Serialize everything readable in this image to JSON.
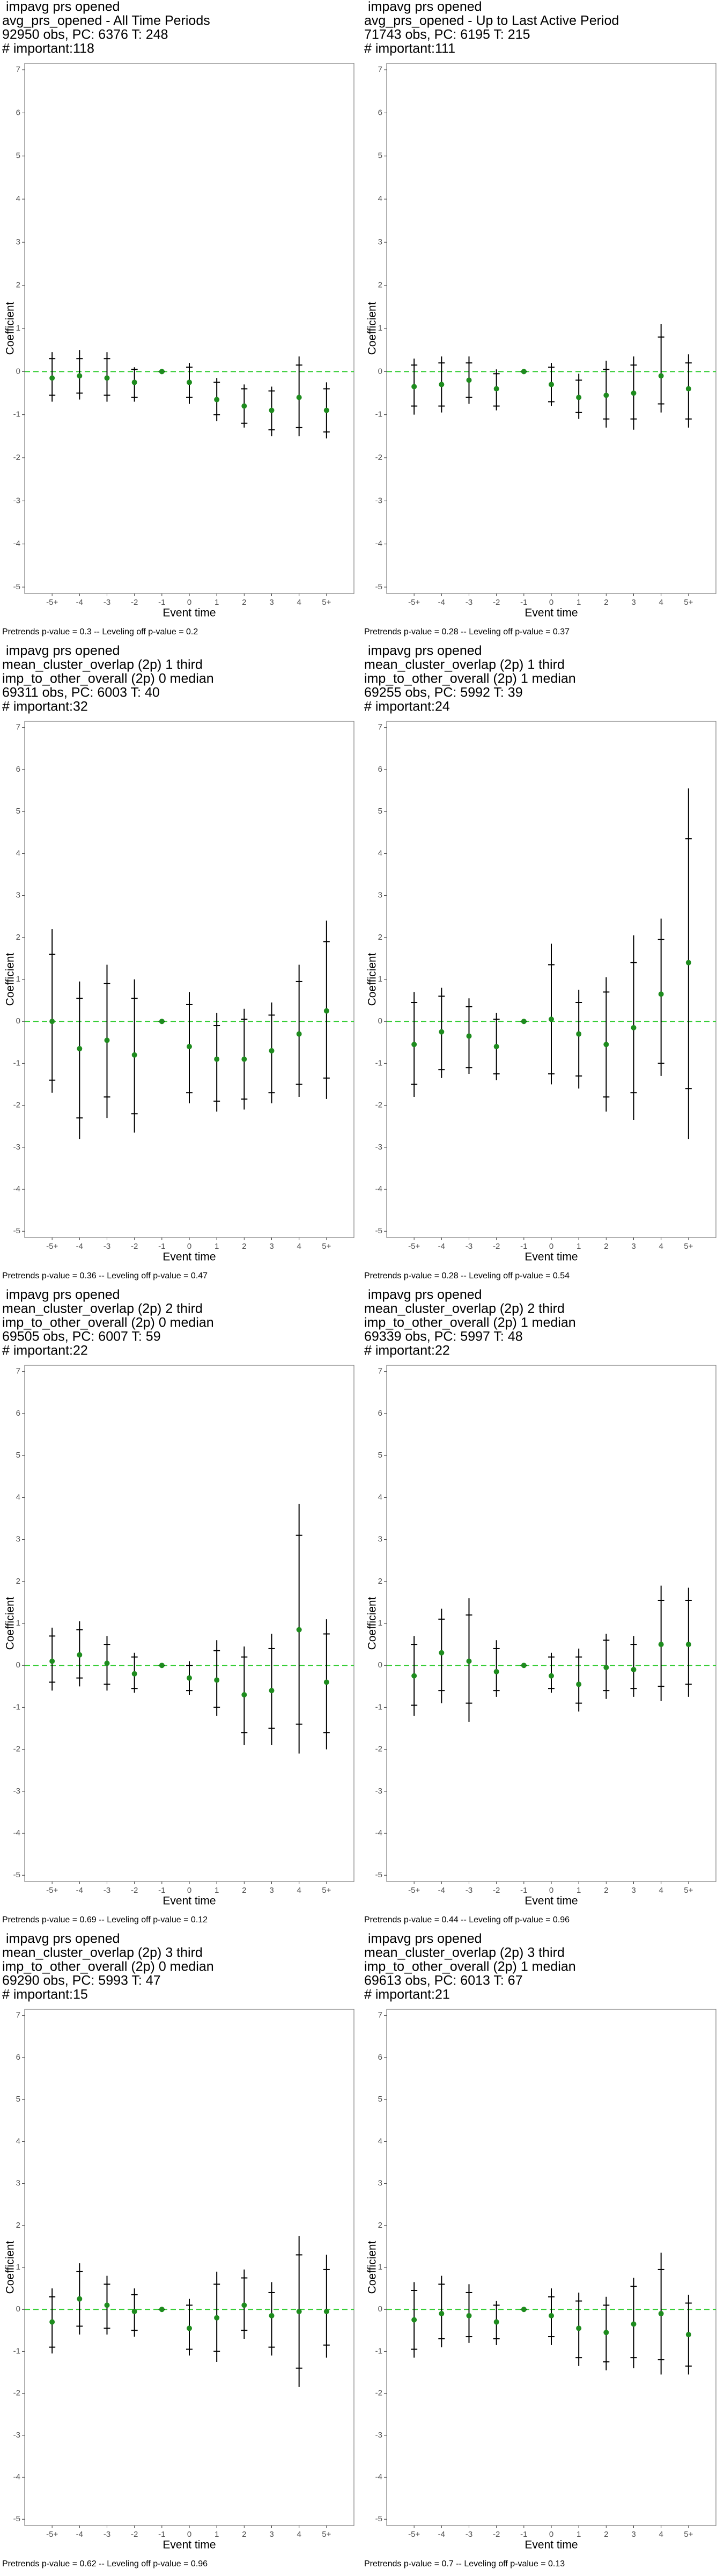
{
  "chart_data": [
    {
      "type": "point-range",
      "title": [
        " impavg prs opened",
        "avg_prs_opened - All Time Periods",
        "92950 obs, PC: 6376 T: 248",
        "# important:118"
      ],
      "xlabel": "Event time",
      "ylabel": "Coefficient",
      "footnote": "Pretrends p-value = 0.3 -- Leveling off p-value = 0.2",
      "categories": [
        "-5+",
        "-4",
        "-3",
        "-2",
        "-1",
        "0",
        "1",
        "2",
        "3",
        "4",
        "5+"
      ],
      "values": [
        -0.15,
        -0.1,
        -0.15,
        -0.25,
        0,
        -0.25,
        -0.65,
        -0.8,
        -0.9,
        -0.6,
        -0.9
      ],
      "ci_lower": [
        -0.7,
        -0.65,
        -0.7,
        -0.7,
        0,
        -0.75,
        -1.15,
        -1.3,
        -1.5,
        -1.5,
        -1.55
      ],
      "ci_upper": [
        0.45,
        0.5,
        0.45,
        0.1,
        0,
        0.2,
        -0.15,
        -0.3,
        -0.35,
        0.35,
        -0.25
      ],
      "inner_lower": [
        -0.55,
        -0.5,
        -0.55,
        -0.6,
        0,
        -0.6,
        -1.0,
        -1.2,
        -1.35,
        -1.3,
        -1.4
      ],
      "inner_upper": [
        0.3,
        0.3,
        0.3,
        0.05,
        0,
        0.1,
        -0.25,
        -0.4,
        -0.45,
        0.15,
        -0.4
      ],
      "ylim": [
        -5.15,
        7.15
      ],
      "yticks": [
        -5,
        -4,
        -3,
        -2,
        -1,
        0,
        1,
        2,
        3,
        4,
        5,
        6,
        7
      ],
      "hline": 0,
      "hline_color": "#33cc33",
      "point_color": "#1e8c1e",
      "line_color": "#000000"
    },
    {
      "type": "point-range",
      "title": [
        " impavg prs opened",
        "avg_prs_opened - Up to Last Active Period",
        "71743 obs, PC: 6195 T: 215",
        "# important:111"
      ],
      "xlabel": "Event time",
      "ylabel": "Coefficient",
      "footnote": "Pretrends p-value = 0.28 -- Leveling off p-value = 0.37",
      "categories": [
        "-5+",
        "-4",
        "-3",
        "-2",
        "-1",
        "0",
        "1",
        "2",
        "3",
        "4",
        "5+"
      ],
      "values": [
        -0.35,
        -0.3,
        -0.2,
        -0.4,
        0,
        -0.3,
        -0.6,
        -0.55,
        -0.5,
        -0.1,
        -0.4
      ],
      "ci_lower": [
        -1.0,
        -0.95,
        -0.75,
        -0.9,
        0,
        -0.8,
        -1.1,
        -1.3,
        -1.35,
        -0.95,
        -1.3
      ],
      "ci_upper": [
        0.3,
        0.35,
        0.35,
        0.05,
        0,
        0.2,
        -0.05,
        0.25,
        0.35,
        1.1,
        0.4
      ],
      "inner_lower": [
        -0.8,
        -0.8,
        -0.6,
        -0.8,
        0,
        -0.7,
        -0.95,
        -1.1,
        -1.1,
        -0.75,
        -1.1
      ],
      "inner_upper": [
        0.15,
        0.2,
        0.2,
        -0.05,
        0,
        0.1,
        -0.2,
        0.05,
        0.15,
        0.8,
        0.2
      ],
      "ylim": [
        -5.15,
        7.15
      ],
      "yticks": [
        -5,
        -4,
        -3,
        -2,
        -1,
        0,
        1,
        2,
        3,
        4,
        5,
        6,
        7
      ],
      "hline": 0,
      "hline_color": "#33cc33",
      "point_color": "#1e8c1e",
      "line_color": "#000000"
    },
    {
      "type": "point-range",
      "title": [
        " impavg prs opened",
        "mean_cluster_overlap (2p) 1 third",
        "imp_to_other_overall (2p) 0 median",
        "69311 obs, PC: 6003 T: 40",
        "# important:32"
      ],
      "xlabel": "Event time",
      "ylabel": "Coefficient",
      "footnote": "Pretrends p-value = 0.36 -- Leveling off p-value = 0.47",
      "categories": [
        "-5+",
        "-4",
        "-3",
        "-2",
        "-1",
        "0",
        "1",
        "2",
        "3",
        "4",
        "5+"
      ],
      "values": [
        0,
        -0.65,
        -0.45,
        -0.8,
        0,
        -0.6,
        -0.9,
        -0.9,
        -0.7,
        -0.3,
        0.25
      ],
      "ci_lower": [
        -1.7,
        -2.8,
        -2.3,
        -2.65,
        0,
        -1.95,
        -2.15,
        -2.1,
        -1.95,
        -1.8,
        -1.85
      ],
      "ci_upper": [
        2.2,
        0.95,
        1.35,
        1.0,
        0,
        0.7,
        0.2,
        0.3,
        0.45,
        1.35,
        2.4
      ],
      "inner_lower": [
        -1.4,
        -2.3,
        -1.8,
        -2.2,
        0,
        -1.7,
        -1.9,
        -1.85,
        -1.7,
        -1.5,
        -1.35
      ],
      "inner_upper": [
        1.6,
        0.55,
        0.9,
        0.55,
        0,
        0.4,
        -0.1,
        0.05,
        0.15,
        0.95,
        1.9
      ],
      "ylim": [
        -5.15,
        7.15
      ],
      "yticks": [
        -5,
        -4,
        -3,
        -2,
        -1,
        0,
        1,
        2,
        3,
        4,
        5,
        6,
        7
      ],
      "hline": 0,
      "hline_color": "#33cc33",
      "point_color": "#1e8c1e",
      "line_color": "#000000"
    },
    {
      "type": "point-range",
      "title": [
        " impavg prs opened",
        "mean_cluster_overlap (2p) 1 third",
        "imp_to_other_overall (2p) 1 median",
        "69255 obs, PC: 5992 T: 39",
        "# important:24"
      ],
      "xlabel": "Event time",
      "ylabel": "Coefficient",
      "footnote": "Pretrends p-value = 0.28 -- Leveling off p-value = 0.54",
      "categories": [
        "-5+",
        "-4",
        "-3",
        "-2",
        "-1",
        "0",
        "1",
        "2",
        "3",
        "4",
        "5+"
      ],
      "values": [
        -0.55,
        -0.25,
        -0.35,
        -0.6,
        0,
        0.05,
        -0.3,
        -0.55,
        -0.15,
        0.65,
        1.4
      ],
      "ci_lower": [
        -1.8,
        -1.35,
        -1.25,
        -1.4,
        0,
        -1.5,
        -1.6,
        -2.15,
        -2.35,
        -1.3,
        -2.8
      ],
      "ci_upper": [
        0.7,
        0.8,
        0.55,
        0.2,
        0,
        1.85,
        0.75,
        1.05,
        2.05,
        2.45,
        5.55
      ],
      "inner_lower": [
        -1.5,
        -1.15,
        -1.1,
        -1.25,
        0,
        -1.25,
        -1.3,
        -1.8,
        -1.7,
        -1.0,
        -1.6
      ],
      "inner_upper": [
        0.45,
        0.6,
        0.35,
        0.05,
        0,
        1.35,
        0.45,
        0.7,
        1.4,
        1.95,
        4.35
      ],
      "ylim": [
        -5.15,
        7.15
      ],
      "yticks": [
        -5,
        -4,
        -3,
        -2,
        -1,
        0,
        1,
        2,
        3,
        4,
        5,
        6,
        7
      ],
      "hline": 0,
      "hline_color": "#33cc33",
      "point_color": "#1e8c1e",
      "line_color": "#000000"
    },
    {
      "type": "point-range",
      "title": [
        " impavg prs opened",
        "mean_cluster_overlap (2p) 2 third",
        "imp_to_other_overall (2p) 0 median",
        "69505 obs, PC: 6007 T: 59",
        "# important:22"
      ],
      "xlabel": "Event time",
      "ylabel": "Coefficient",
      "footnote": "Pretrends p-value = 0.69 -- Leveling off p-value = 0.12",
      "categories": [
        "-5+",
        "-4",
        "-3",
        "-2",
        "-1",
        "0",
        "1",
        "2",
        "3",
        "4",
        "5+"
      ],
      "values": [
        0.1,
        0.25,
        0.05,
        -0.2,
        0,
        -0.3,
        -0.35,
        -0.7,
        -0.6,
        0.85,
        -0.4
      ],
      "ci_lower": [
        -0.6,
        -0.5,
        -0.6,
        -0.65,
        0,
        -0.7,
        -1.2,
        -1.9,
        -1.9,
        -2.1,
        -2.0
      ],
      "ci_upper": [
        0.9,
        1.05,
        0.7,
        0.3,
        0,
        0.1,
        0.6,
        0.45,
        0.75,
        3.85,
        1.1
      ],
      "inner_lower": [
        -0.4,
        -0.3,
        -0.45,
        -0.55,
        0,
        -0.6,
        -1.0,
        -1.6,
        -1.5,
        -1.4,
        -1.6
      ],
      "inner_upper": [
        0.7,
        0.85,
        0.5,
        0.2,
        0,
        0.0,
        0.35,
        0.2,
        0.4,
        3.1,
        0.75
      ],
      "ylim": [
        -5.15,
        7.15
      ],
      "yticks": [
        -5,
        -4,
        -3,
        -2,
        -1,
        0,
        1,
        2,
        3,
        4,
        5,
        6,
        7
      ],
      "hline": 0,
      "hline_color": "#33cc33",
      "point_color": "#1e8c1e",
      "line_color": "#000000"
    },
    {
      "type": "point-range",
      "title": [
        " impavg prs opened",
        "mean_cluster_overlap (2p) 2 third",
        "imp_to_other_overall (2p) 1 median",
        "69339 obs, PC: 5997 T: 48",
        "# important:22"
      ],
      "xlabel": "Event time",
      "ylabel": "Coefficient",
      "footnote": "Pretrends p-value = 0.44 -- Leveling off p-value = 0.96",
      "categories": [
        "-5+",
        "-4",
        "-3",
        "-2",
        "-1",
        "0",
        "1",
        "2",
        "3",
        "4",
        "5+"
      ],
      "values": [
        -0.25,
        0.3,
        0.1,
        -0.15,
        0,
        -0.25,
        -0.45,
        -0.05,
        -0.1,
        0.5,
        0.5
      ],
      "ci_lower": [
        -1.2,
        -0.9,
        -1.35,
        -0.75,
        0,
        -0.65,
        -1.1,
        -0.8,
        -0.75,
        -0.85,
        -0.75
      ],
      "ci_upper": [
        0.7,
        1.35,
        1.6,
        0.6,
        0,
        0.3,
        0.4,
        0.75,
        0.7,
        1.9,
        1.85
      ],
      "inner_lower": [
        -0.95,
        -0.6,
        -0.9,
        -0.6,
        0,
        -0.55,
        -0.9,
        -0.6,
        -0.55,
        -0.5,
        -0.45
      ],
      "inner_upper": [
        0.5,
        1.1,
        1.2,
        0.4,
        0,
        0.2,
        0.2,
        0.6,
        0.5,
        1.55,
        1.55
      ],
      "ylim": [
        -5.15,
        7.15
      ],
      "yticks": [
        -5,
        -4,
        -3,
        -2,
        -1,
        0,
        1,
        2,
        3,
        4,
        5,
        6,
        7
      ],
      "hline": 0,
      "hline_color": "#33cc33",
      "point_color": "#1e8c1e",
      "line_color": "#000000"
    },
    {
      "type": "point-range",
      "title": [
        " impavg prs opened",
        "mean_cluster_overlap (2p) 3 third",
        "imp_to_other_overall (2p) 0 median",
        "69290 obs, PC: 5993 T: 47",
        "# important:15"
      ],
      "xlabel": "Event time",
      "ylabel": "Coefficient",
      "footnote": "Pretrends p-value = 0.62 -- Leveling off p-value = 0.96",
      "categories": [
        "-5+",
        "-4",
        "-3",
        "-2",
        "-1",
        "0",
        "1",
        "2",
        "3",
        "4",
        "5+"
      ],
      "values": [
        -0.3,
        0.25,
        0.1,
        -0.05,
        0,
        -0.45,
        -0.2,
        0.1,
        -0.15,
        -0.05,
        -0.05
      ],
      "ci_lower": [
        -1.05,
        -0.6,
        -0.6,
        -0.65,
        0,
        -1.1,
        -1.25,
        -0.7,
        -1.1,
        -1.85,
        -1.15
      ],
      "ci_upper": [
        0.5,
        1.1,
        0.8,
        0.5,
        0,
        0.25,
        0.9,
        0.95,
        0.65,
        1.75,
        1.3
      ],
      "inner_lower": [
        -0.9,
        -0.4,
        -0.45,
        -0.5,
        0,
        -0.95,
        -1.0,
        -0.5,
        -0.9,
        -1.4,
        -0.85
      ],
      "inner_upper": [
        0.3,
        0.9,
        0.6,
        0.35,
        0,
        0.1,
        0.6,
        0.75,
        0.4,
        1.3,
        0.95
      ],
      "ylim": [
        -5.15,
        7.15
      ],
      "yticks": [
        -5,
        -4,
        -3,
        -2,
        -1,
        0,
        1,
        2,
        3,
        4,
        5,
        6,
        7
      ],
      "hline": 0,
      "hline_color": "#33cc33",
      "point_color": "#1e8c1e",
      "line_color": "#000000"
    },
    {
      "type": "point-range",
      "title": [
        " impavg prs opened",
        "mean_cluster_overlap (2p) 3 third",
        "imp_to_other_overall (2p) 1 median",
        "69613 obs, PC: 6013 T: 67",
        "# important:21"
      ],
      "xlabel": "Event time",
      "ylabel": "Coefficient",
      "footnote": "Pretrends p-value = 0.7 -- Leveling off p-value = 0.13",
      "categories": [
        "-5+",
        "-4",
        "-3",
        "-2",
        "-1",
        "0",
        "1",
        "2",
        "3",
        "4",
        "5+"
      ],
      "values": [
        -0.25,
        -0.1,
        -0.15,
        -0.3,
        0,
        -0.15,
        -0.45,
        -0.55,
        -0.35,
        -0.1,
        -0.6
      ],
      "ci_lower": [
        -1.15,
        -0.9,
        -0.8,
        -0.85,
        0,
        -0.85,
        -1.35,
        -1.45,
        -1.4,
        -1.55,
        -1.55
      ],
      "ci_upper": [
        0.65,
        0.8,
        0.6,
        0.2,
        0,
        0.5,
        0.4,
        0.3,
        0.75,
        1.35,
        0.35
      ],
      "inner_lower": [
        -0.95,
        -0.7,
        -0.65,
        -0.7,
        0,
        -0.65,
        -1.15,
        -1.25,
        -1.15,
        -1.2,
        -1.35
      ],
      "inner_upper": [
        0.45,
        0.6,
        0.4,
        0.1,
        0,
        0.3,
        0.2,
        0.1,
        0.55,
        0.95,
        0.15
      ],
      "ylim": [
        -5.15,
        7.15
      ],
      "yticks": [
        -5,
        -4,
        -3,
        -2,
        -1,
        0,
        1,
        2,
        3,
        4,
        5,
        6,
        7
      ],
      "hline": 0,
      "hline_color": "#33cc33",
      "point_color": "#1e8c1e",
      "line_color": "#000000"
    }
  ]
}
